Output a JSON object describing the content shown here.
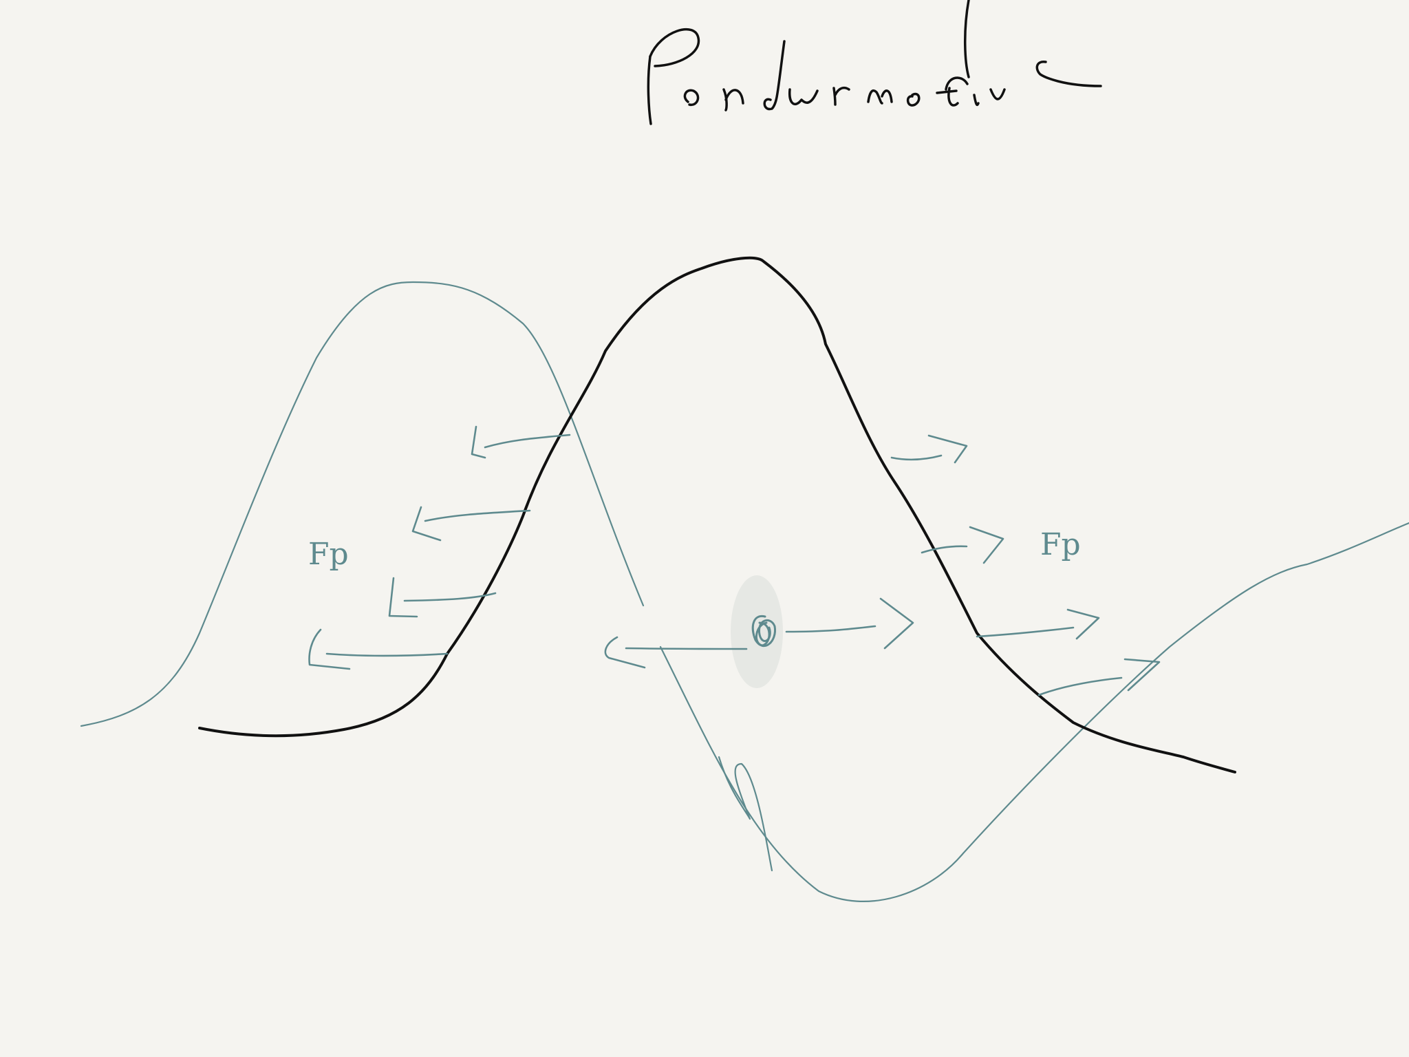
{
  "title": "Ponderomotive",
  "diagram": {
    "force_label_left": "Fp",
    "force_label_right": "Fp",
    "colors": {
      "paper": "#f5f4f0",
      "ink_black": "#111111",
      "ink_teal": "#5e8a8e"
    }
  }
}
